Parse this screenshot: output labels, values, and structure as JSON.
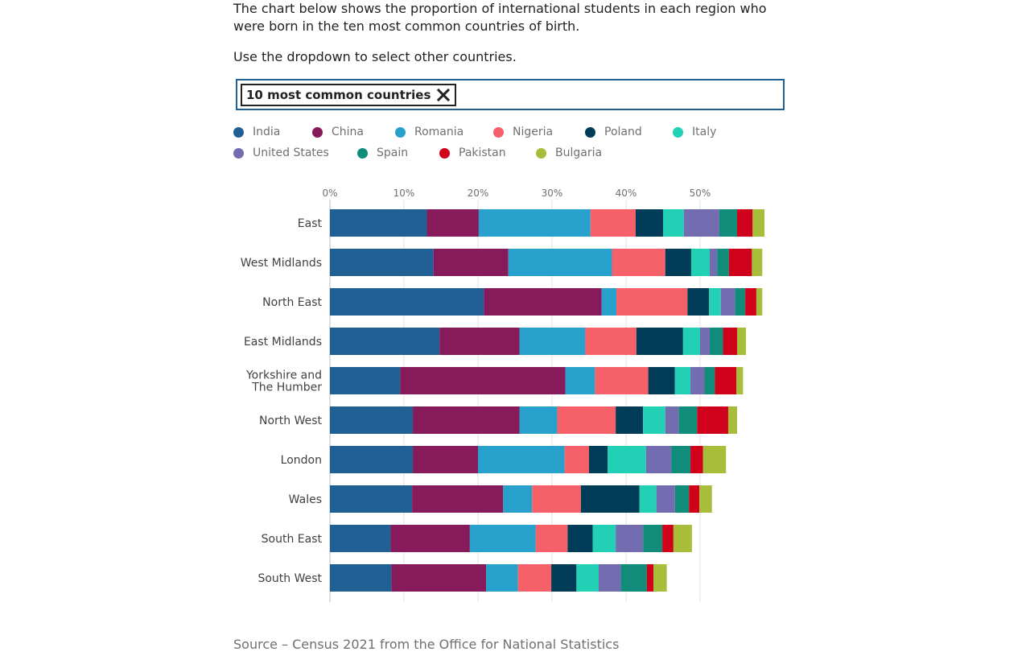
{
  "intro_text": "The chart below shows the proportion of international students in each region who were born in the ten most common countries of birth.",
  "instruction_text": "Use the dropdown to select other countries.",
  "selector": {
    "chip_label": "10 most common countries",
    "remove_icon": "close-icon"
  },
  "source_text": "Source – Census 2021 from the Office for National Statistics",
  "chart_data": {
    "type": "bar",
    "orientation": "horizontal",
    "stacked": true,
    "title": "",
    "xlabel": "",
    "ylabel": "",
    "xlim": [
      0,
      0.6
    ],
    "x_ticks": [
      {
        "value": 0,
        "label": "0%"
      },
      {
        "value": 0.1,
        "label": "10%"
      },
      {
        "value": 0.2,
        "label": "20%"
      },
      {
        "value": 0.3,
        "label": "30%"
      },
      {
        "value": 0.4,
        "label": "40%"
      },
      {
        "value": 0.5,
        "label": "50%"
      }
    ],
    "grid": true,
    "legend_position": "top",
    "categories": [
      [
        "East"
      ],
      [
        "West Midlands"
      ],
      [
        "North East"
      ],
      [
        "East Midlands"
      ],
      [
        "Yorkshire and",
        "The Humber"
      ],
      [
        "North West"
      ],
      [
        "London"
      ],
      [
        "Wales"
      ],
      [
        "South East"
      ],
      [
        "South West"
      ]
    ],
    "series": [
      {
        "name": "India",
        "color": "#206095",
        "values": [
          0.131,
          0.14,
          0.208,
          0.148,
          0.095,
          0.112,
          0.112,
          0.111,
          0.082,
          0.083
        ]
      },
      {
        "name": "China",
        "color": "#871a5b",
        "values": [
          0.07,
          0.101,
          0.159,
          0.108,
          0.223,
          0.144,
          0.088,
          0.123,
          0.107,
          0.128
        ]
      },
      {
        "name": "Romania",
        "color": "#27a0cc",
        "values": [
          0.151,
          0.14,
          0.02,
          0.089,
          0.04,
          0.051,
          0.117,
          0.039,
          0.089,
          0.043
        ]
      },
      {
        "name": "Nigeria",
        "color": "#f66068",
        "values": [
          0.061,
          0.072,
          0.096,
          0.069,
          0.072,
          0.079,
          0.033,
          0.066,
          0.043,
          0.045
        ]
      },
      {
        "name": "Poland",
        "color": "#003c57",
        "values": [
          0.037,
          0.035,
          0.029,
          0.063,
          0.036,
          0.037,
          0.025,
          0.079,
          0.034,
          0.034
        ]
      },
      {
        "name": "Italy",
        "color": "#22d0b6",
        "values": [
          0.028,
          0.025,
          0.016,
          0.023,
          0.021,
          0.03,
          0.052,
          0.023,
          0.031,
          0.03
        ]
      },
      {
        "name": "United States",
        "color": "#746cb1",
        "values": [
          0.048,
          0.01,
          0.019,
          0.013,
          0.019,
          0.018,
          0.034,
          0.025,
          0.037,
          0.03
        ]
      },
      {
        "name": "Spain",
        "color": "#118c7b",
        "values": [
          0.024,
          0.016,
          0.014,
          0.018,
          0.014,
          0.025,
          0.026,
          0.019,
          0.026,
          0.035
        ]
      },
      {
        "name": "Pakistan",
        "color": "#d0021b",
        "values": [
          0.021,
          0.031,
          0.015,
          0.019,
          0.029,
          0.042,
          0.017,
          0.014,
          0.015,
          0.009
        ]
      },
      {
        "name": "Bulgaria",
        "color": "#a8bd3a",
        "values": [
          0.016,
          0.014,
          0.008,
          0.012,
          0.009,
          0.012,
          0.031,
          0.017,
          0.025,
          0.018
        ]
      }
    ]
  }
}
